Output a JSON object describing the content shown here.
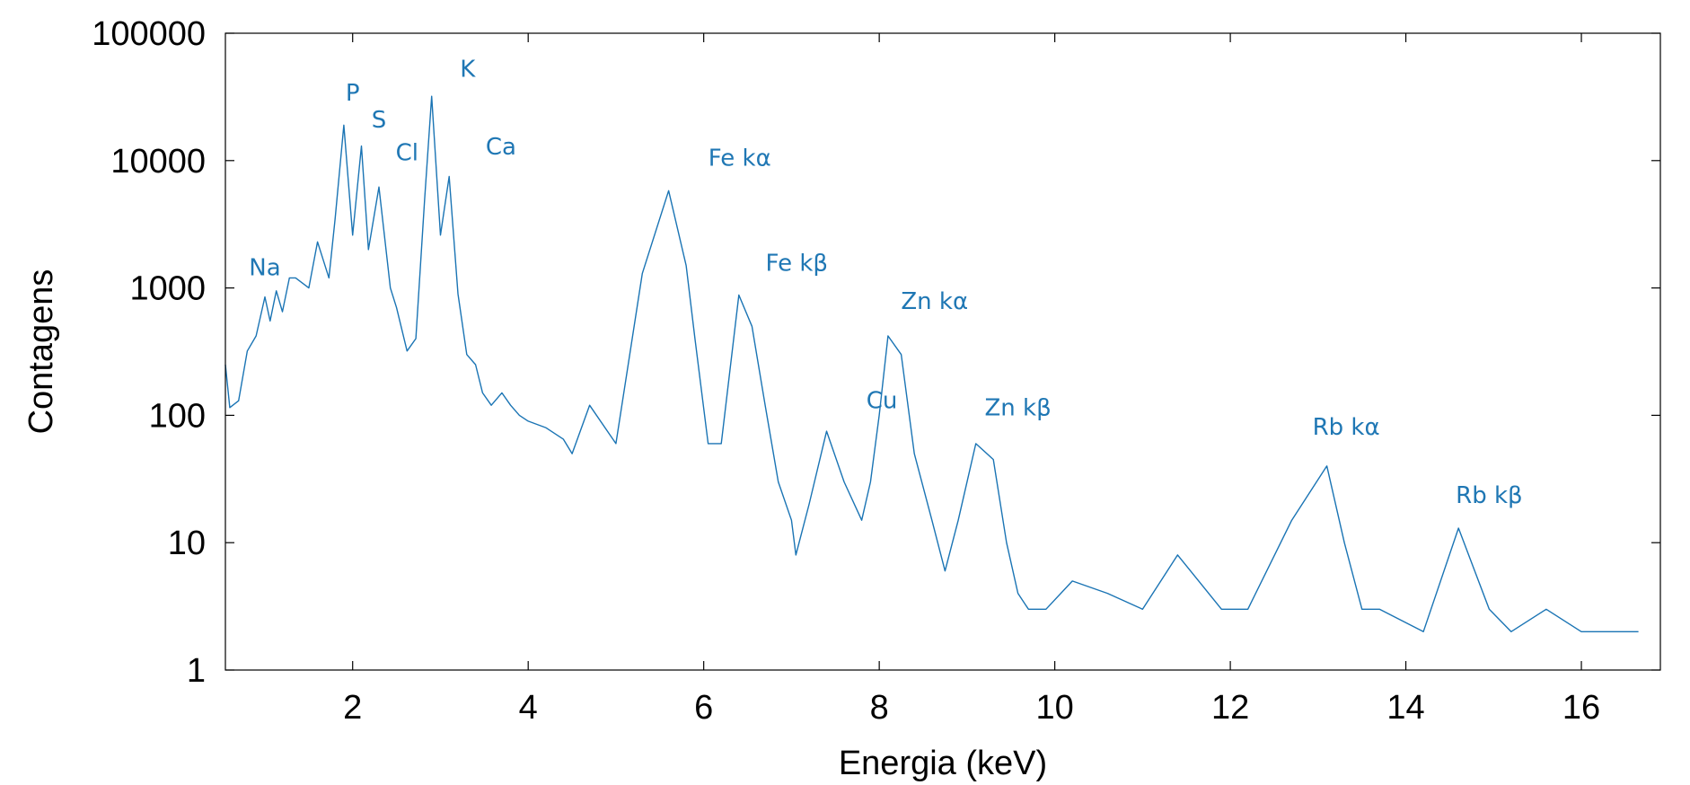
{
  "colors": {
    "spectrum": "#1a74b4",
    "labels": "#1f77b4",
    "axis": "#000000"
  },
  "chart_data": {
    "type": "line",
    "title": "",
    "xlabel": "Energia (keV)",
    "ylabel": "Contagens",
    "xlim": [
      0.55,
      16.9
    ],
    "ylim": [
      1,
      100000
    ],
    "y_scale": "log",
    "grid": false,
    "x_ticks": [
      2,
      4,
      6,
      8,
      10,
      12,
      14,
      16
    ],
    "x_tick_labels": [
      "2",
      "4",
      "6",
      "8",
      "10",
      "12",
      "14",
      "16"
    ],
    "y_ticks": [
      1,
      10,
      100,
      1000,
      10000,
      100000
    ],
    "y_tick_labels": [
      "1",
      "10",
      "100",
      "1000",
      "10000",
      "100000"
    ],
    "series": [
      {
        "x": [
          0.55,
          0.6,
          0.7,
          0.8,
          0.9,
          1.0,
          1.06,
          1.13,
          1.2,
          1.28,
          1.35,
          1.5,
          1.6,
          1.73,
          1.8,
          1.9,
          2.0,
          2.1,
          2.18,
          2.3,
          2.43,
          2.5,
          2.62,
          2.72,
          2.82,
          2.9,
          3.0,
          3.1,
          3.2,
          3.3,
          3.4,
          3.48,
          3.58,
          3.7,
          3.8,
          3.9,
          4.0,
          4.2,
          4.4,
          4.5,
          4.7,
          5.0,
          5.3,
          5.6,
          5.8,
          5.9,
          6.05,
          6.2,
          6.4,
          6.55,
          6.7,
          6.85,
          7.0,
          7.05,
          7.2,
          7.4,
          7.6,
          7.8,
          7.9,
          8.0,
          8.1,
          8.25,
          8.4,
          8.6,
          8.75,
          8.9,
          9.1,
          9.3,
          9.45,
          9.58,
          9.7,
          9.9,
          10.2,
          10.6,
          11.0,
          11.4,
          11.9,
          12.2,
          12.7,
          13.1,
          13.3,
          13.5,
          13.7,
          14.2,
          14.6,
          14.95,
          15.2,
          15.6,
          16.0,
          16.5,
          16.65
        ],
        "y": [
          250,
          115,
          130,
          320,
          420,
          850,
          550,
          950,
          650,
          1200,
          1200,
          1000,
          2300,
          1200,
          3500,
          19000,
          2600,
          13000,
          2000,
          6200,
          1000,
          700,
          320,
          400,
          5000,
          32000,
          2600,
          7500,
          900,
          300,
          250,
          150,
          120,
          150,
          120,
          100,
          90,
          80,
          65,
          50,
          120,
          60,
          1300,
          5800,
          1500,
          400,
          60,
          60,
          880,
          500,
          120,
          30,
          15,
          8,
          20,
          75,
          30,
          15,
          30,
          100,
          420,
          300,
          50,
          15,
          6,
          15,
          60,
          45,
          10,
          4,
          3,
          3,
          5,
          4,
          3,
          8,
          3,
          3,
          15,
          40,
          10,
          3,
          3,
          2,
          13,
          3,
          2,
          3,
          2,
          2,
          2
        ]
      }
    ],
    "annotations": [
      {
        "text": "Na",
        "x": 1.0,
        "y": 1100
      },
      {
        "text": "P",
        "x": 2.0,
        "y": 26000
      },
      {
        "text": "S",
        "x": 2.3,
        "y": 16000
      },
      {
        "text": "Cl",
        "x": 2.62,
        "y": 8800
      },
      {
        "text": "K",
        "x": 3.31,
        "y": 40000
      },
      {
        "text": "Ca",
        "x": 3.69,
        "y": 9800
      },
      {
        "text": "Fe kα",
        "x": 6.41,
        "y": 8000
      },
      {
        "text": "Fe kβ",
        "x": 7.06,
        "y": 1200
      },
      {
        "text": "Zn kα",
        "x": 8.63,
        "y": 600
      },
      {
        "text": "Cu",
        "x": 8.03,
        "y": 100
      },
      {
        "text": "Zn kβ",
        "x": 9.58,
        "y": 88
      },
      {
        "text": "Rb kα",
        "x": 13.32,
        "y": 62
      },
      {
        "text": "Rb kβ",
        "x": 14.95,
        "y": 18
      }
    ]
  }
}
